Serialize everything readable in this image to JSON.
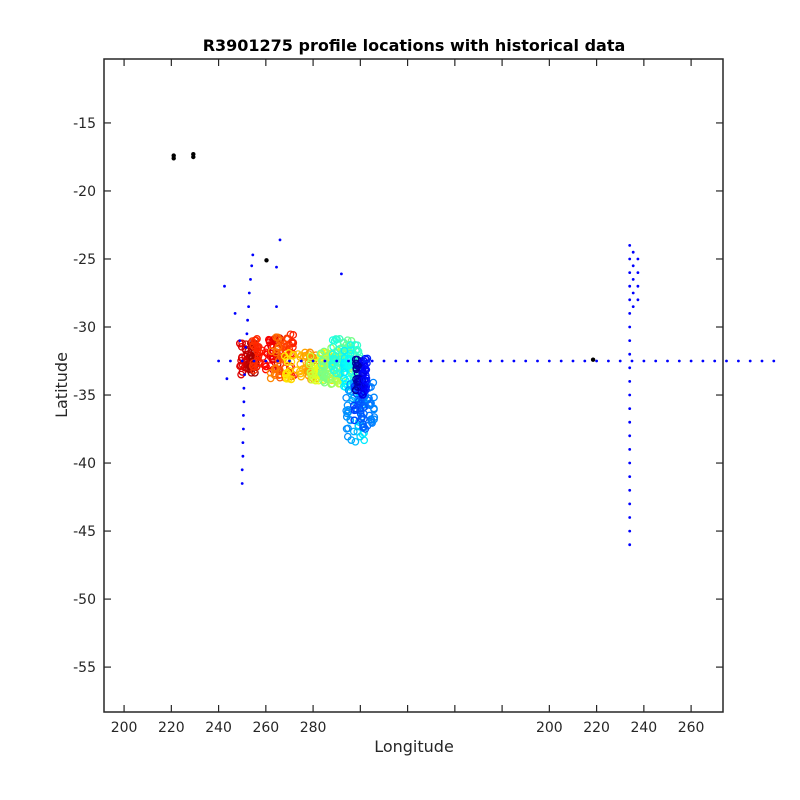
{
  "chart_data": {
    "type": "scatter",
    "title": "R3901275 profile locations with historical data",
    "xlabel": "Longitude",
    "ylabel": "Latitude",
    "x_tick_labels": [
      "200",
      "220",
      "240",
      "260",
      "280",
      "200",
      "220",
      "240",
      "260"
    ],
    "y_ticks": [
      -15,
      -20,
      -25,
      -30,
      -35,
      -40,
      -45,
      -50,
      -55
    ],
    "y_tick_labels": [
      "-15",
      "-20",
      "-25",
      "-30",
      "-35",
      "-40",
      "-45",
      "-50",
      "-55"
    ],
    "ylim": [
      -58.3,
      -10.3
    ],
    "grid": false,
    "legend": "none",
    "colors": {
      "historical": "#0000ff",
      "black_markers": "#000000",
      "colormap": "jet"
    },
    "series": [
      {
        "kind": "historical-dots",
        "color": "#0000ff",
        "points": [
          {
            "x": 240,
            "y": -32.5
          },
          {
            "x": 245,
            "y": -32.5
          },
          {
            "x": 250,
            "y": -32.5
          },
          {
            "x": 255,
            "y": -32.5
          },
          {
            "x": 260,
            "y": -32.5
          },
          {
            "x": 265,
            "y": -32.5
          },
          {
            "x": 270,
            "y": -32.5
          },
          {
            "x": 275,
            "y": -32.5
          },
          {
            "x": 280,
            "y": -32.5
          },
          {
            "x": 285,
            "y": -32.5
          },
          {
            "x": 290,
            "y": -32.5
          },
          {
            "x": 295,
            "y": -32.5
          },
          {
            "x": 300,
            "y": -32.5
          },
          {
            "x": 305,
            "y": -32.5
          },
          {
            "x": 310,
            "y": -32.5
          },
          {
            "x": 315,
            "y": -32.5
          },
          {
            "x": 320,
            "y": -32.5
          },
          {
            "x": 325,
            "y": -32.5
          },
          {
            "x": 330,
            "y": -32.5
          },
          {
            "x": 335,
            "y": -32.5
          },
          {
            "x": 340,
            "y": -32.5
          },
          {
            "x": 345,
            "y": -32.5
          },
          {
            "x": 350,
            "y": -32.5
          },
          {
            "x": 355,
            "y": -32.5
          },
          {
            "x": 360,
            "y": -32.5
          },
          {
            "x": 365,
            "y": -32.5
          },
          {
            "x": 370,
            "y": -32.5
          },
          {
            "x": 375,
            "y": -32.5
          },
          {
            "x": 380,
            "y": -32.5
          },
          {
            "x": 385,
            "y": -32.5
          },
          {
            "x": 390,
            "y": -32.5
          },
          {
            "x": 395,
            "y": -32.5
          },
          {
            "x": 400,
            "y": -32.5
          },
          {
            "x": 405,
            "y": -32.5
          },
          {
            "x": 410,
            "y": -32.5
          },
          {
            "x": 415,
            "y": -32.5
          },
          {
            "x": 420,
            "y": -32.5
          },
          {
            "x": 425,
            "y": -32.5
          },
          {
            "x": 430,
            "y": -32.5
          },
          {
            "x": 435,
            "y": -32.5
          },
          {
            "x": 440,
            "y": -32.5
          },
          {
            "x": 445,
            "y": -32.5
          },
          {
            "x": 450,
            "y": -32.5
          },
          {
            "x": 455,
            "y": -32.5
          },
          {
            "x": 460,
            "y": -32.5
          },
          {
            "x": 465,
            "y": -32.5
          },
          {
            "x": 470,
            "y": -32.5
          },
          {
            "x": 475,
            "y": -32.5
          },
          {
            "x": 250,
            "y": -41.5
          },
          {
            "x": 250,
            "y": -40.5
          },
          {
            "x": 250.3,
            "y": -39.5
          },
          {
            "x": 250.3,
            "y": -38.5
          },
          {
            "x": 250.5,
            "y": -37.5
          },
          {
            "x": 250.5,
            "y": -36.5
          },
          {
            "x": 250.7,
            "y": -35.5
          },
          {
            "x": 250.7,
            "y": -34.5
          },
          {
            "x": 251,
            "y": -33.5
          },
          {
            "x": 251.5,
            "y": -31.5
          },
          {
            "x": 252,
            "y": -30.5
          },
          {
            "x": 252.3,
            "y": -29.5
          },
          {
            "x": 252.7,
            "y": -28.5
          },
          {
            "x": 253,
            "y": -27.5
          },
          {
            "x": 253.5,
            "y": -26.5
          },
          {
            "x": 254,
            "y": -25.5
          },
          {
            "x": 254.5,
            "y": -24.7
          },
          {
            "x": 242.5,
            "y": -27.0
          },
          {
            "x": 247,
            "y": -29.0
          },
          {
            "x": 249,
            "y": -31.0
          },
          {
            "x": 243.5,
            "y": -33.8
          },
          {
            "x": 264.5,
            "y": -25.6
          },
          {
            "x": 266,
            "y": -23.6
          },
          {
            "x": 264.5,
            "y": -28.5
          },
          {
            "x": 292,
            "y": -26.1
          },
          {
            "x": 414,
            "y": -46.0
          },
          {
            "x": 414,
            "y": -45.0
          },
          {
            "x": 414,
            "y": -44.0
          },
          {
            "x": 414,
            "y": -43.0
          },
          {
            "x": 414,
            "y": -42.0
          },
          {
            "x": 414,
            "y": -41.0
          },
          {
            "x": 414,
            "y": -40.0
          },
          {
            "x": 414,
            "y": -39.0
          },
          {
            "x": 414,
            "y": -38.0
          },
          {
            "x": 414,
            "y": -37.0
          },
          {
            "x": 414,
            "y": -36.0
          },
          {
            "x": 414,
            "y": -35.0
          },
          {
            "x": 414,
            "y": -34.0
          },
          {
            "x": 414,
            "y": -33.0
          },
          {
            "x": 414,
            "y": -32.0
          },
          {
            "x": 414,
            "y": -31.0
          },
          {
            "x": 414,
            "y": -30.0
          },
          {
            "x": 414,
            "y": -29.0
          },
          {
            "x": 414,
            "y": -28.0
          },
          {
            "x": 414,
            "y": -27.0
          },
          {
            "x": 414,
            "y": -26.0
          },
          {
            "x": 414,
            "y": -25.0
          },
          {
            "x": 414,
            "y": -24.0
          },
          {
            "x": 415.5,
            "y": -28.5
          },
          {
            "x": 415.5,
            "y": -27.5
          },
          {
            "x": 415.5,
            "y": -26.5
          },
          {
            "x": 415.5,
            "y": -25.5
          },
          {
            "x": 415.5,
            "y": -24.5
          },
          {
            "x": 417.5,
            "y": -28.0
          },
          {
            "x": 417.5,
            "y": -27.0
          },
          {
            "x": 417.5,
            "y": -26.0
          },
          {
            "x": 417.5,
            "y": -25.0
          }
        ]
      },
      {
        "kind": "historical-black",
        "color": "#000000",
        "points": [
          {
            "x": 221,
            "y": -17.6
          },
          {
            "x": 221,
            "y": -17.4
          },
          {
            "x": 229.3,
            "y": -17.5
          },
          {
            "x": 229.3,
            "y": -17.3
          },
          {
            "x": 260.3,
            "y": -25.1
          },
          {
            "x": 398.5,
            "y": -32.4
          }
        ]
      },
      {
        "kind": "float-profiles",
        "colormap": "jet",
        "clusters": [
          {
            "x": [
              249,
              256
            ],
            "y": [
              -33.5,
              -31
            ],
            "c": [
              0.02,
              0.1
            ]
          },
          {
            "x": [
              254,
              266
            ],
            "y": [
              -33.2,
              -30.8
            ],
            "c": [
              0.08,
              0.18
            ]
          },
          {
            "x": [
              262,
              272
            ],
            "y": [
              -33.8,
              -30.5
            ],
            "c": [
              0.15,
              0.26
            ]
          },
          {
            "x": [
              268,
              282
            ],
            "y": [
              -33.9,
              -31.8
            ],
            "c": [
              0.24,
              0.36
            ]
          },
          {
            "x": [
              278,
              288
            ],
            "y": [
              -34.0,
              -31.8
            ],
            "c": [
              0.34,
              0.44
            ]
          },
          {
            "x": [
              283,
              293
            ],
            "y": [
              -34.2,
              -31.5
            ],
            "c": [
              0.42,
              0.52
            ]
          },
          {
            "x": [
              288,
              297
            ],
            "y": [
              -33.5,
              -30.8
            ],
            "c": [
              0.5,
              0.6
            ]
          },
          {
            "x": [
              293,
              300
            ],
            "y": [
              -34.5,
              -31.2
            ],
            "c": [
              0.56,
              0.64
            ]
          },
          {
            "x": [
              294,
              302
            ],
            "y": [
              -38.5,
              -34.0
            ],
            "c": [
              0.64,
              0.74
            ]
          },
          {
            "x": [
              297,
              306
            ],
            "y": [
              -37.5,
              -34.0
            ],
            "c": [
              0.74,
              0.82
            ]
          },
          {
            "x": [
              298,
              303
            ],
            "y": [
              -35.0,
              -32.3
            ],
            "c": [
              0.84,
              0.98
            ]
          }
        ]
      }
    ]
  }
}
